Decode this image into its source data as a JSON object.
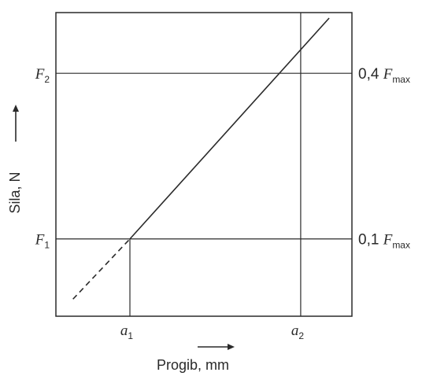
{
  "chart_data": {
    "type": "line",
    "xlabel": "Progib, mm",
    "ylabel": "Sila, N",
    "x_ticks": [
      {
        "sym": "a",
        "sub": "1",
        "value": 1
      },
      {
        "sym": "a",
        "sub": "2",
        "value": 4
      }
    ],
    "y_ticks_left": [
      {
        "sym": "F",
        "sub": "1",
        "value": 1
      },
      {
        "sym": "F",
        "sub": "2",
        "value": 4
      }
    ],
    "y_ticks_right": [
      {
        "coef": "0,1",
        "sym": "F",
        "sub": "max",
        "value": 1
      },
      {
        "coef": "0,4",
        "sym": "F",
        "sub": "max",
        "value": 4
      }
    ],
    "series": [
      {
        "style": "solid",
        "x": [
          1,
          4.5
        ],
        "y": [
          1,
          5.0
        ]
      },
      {
        "style": "dashed",
        "x": [
          0,
          1
        ],
        "y": [
          -0.09,
          1
        ]
      }
    ],
    "xlim": [
      -0.3,
      4.9
    ],
    "ylim": [
      -0.4,
      5.1
    ],
    "grid": false,
    "colors": {
      "ink": "#2a2a2a",
      "frame": "#2a2a2a"
    }
  }
}
